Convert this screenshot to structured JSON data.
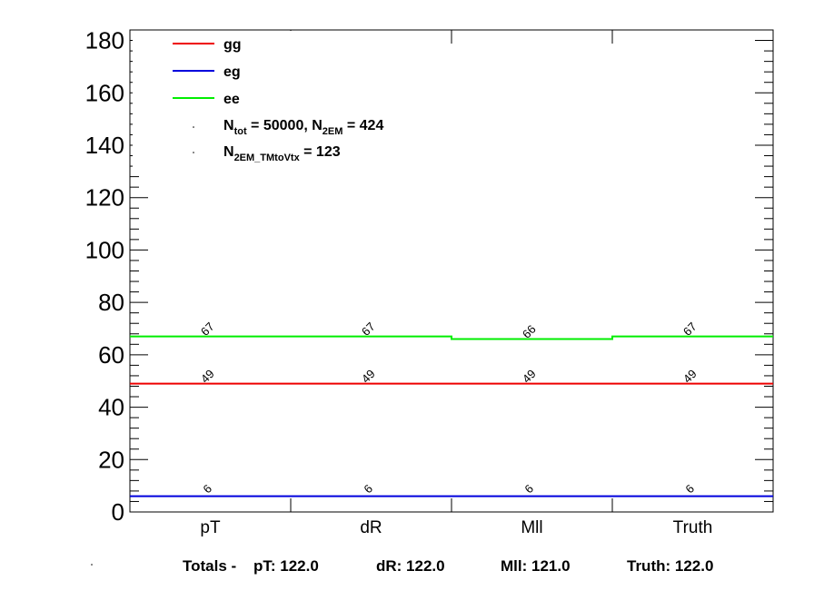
{
  "chart_data": {
    "type": "line",
    "categories": [
      "pT",
      "dR",
      "Mll",
      "Truth"
    ],
    "ylim": [
      0,
      184
    ],
    "yticks": [
      0,
      20,
      40,
      60,
      80,
      100,
      120,
      140,
      160,
      180
    ],
    "series": [
      {
        "name": "gg",
        "color": "#ee0000",
        "values": [
          49,
          49,
          49,
          49
        ],
        "labels": [
          "49",
          "49",
          "49",
          "49"
        ]
      },
      {
        "name": "eg",
        "color": "#0000dd",
        "values": [
          6,
          6,
          6,
          6
        ],
        "labels": [
          "6",
          "6",
          "6",
          "6"
        ]
      },
      {
        "name": "ee",
        "color": "#00ee00",
        "values": [
          67,
          67,
          66,
          67
        ],
        "labels": [
          "67",
          "67",
          "66",
          "67"
        ]
      }
    ],
    "legend": {
      "placement": "top-left",
      "info1": {
        "n_base": "N",
        "n_sub": "tot",
        "mid": " = 50000, N",
        "sub2": "2EM",
        "tail": " = 424"
      },
      "info2": {
        "n_base": "N",
        "n_sub": "2EM_TMtoVtx",
        "tail": " = 123"
      }
    },
    "footer": {
      "prefix": "Totals -",
      "items": [
        "pT: 122.0",
        "dR: 122.0",
        "Mll: 121.0",
        "Truth: 122.0"
      ]
    }
  }
}
